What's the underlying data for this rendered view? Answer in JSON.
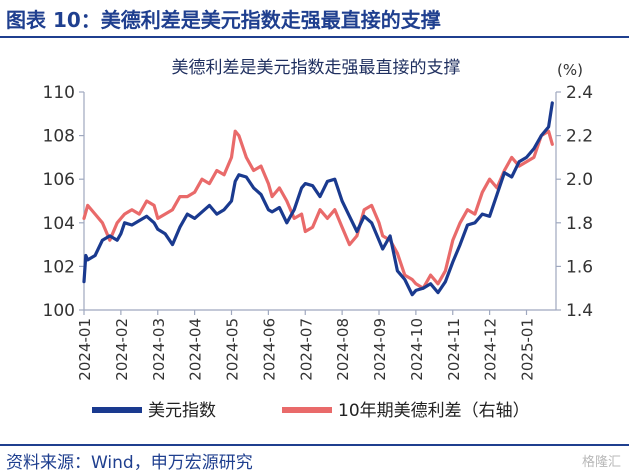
{
  "figure_title": "图表 10：美德利差是美元指数走强最直接的支撑",
  "source": "资料来源：Wind，申万宏源研究",
  "watermark": "格隆汇",
  "colors": {
    "usd": "#1a3a8f",
    "spread": "#e96a6a",
    "accent": "#1f3f8f"
  },
  "chart_data": {
    "type": "line",
    "title": "美德利差是美元指数走强最直接的支撑",
    "right_unit": "(%)",
    "left_axis": {
      "ylim": [
        100,
        110
      ],
      "ticks": [
        "100",
        "102",
        "104",
        "106",
        "108",
        "110"
      ]
    },
    "right_axis": {
      "ylim": [
        1.4,
        2.4
      ],
      "ticks": [
        "1.4",
        "1.6",
        "1.8",
        "2.0",
        "2.2",
        "2.4"
      ]
    },
    "x_range": [
      0,
      12.8
    ],
    "x_ticks": [
      "2024-01",
      "2024-02",
      "2024-03",
      "2024-04",
      "2024-05",
      "2024-06",
      "2024-07",
      "2024-08",
      "2024-09",
      "2024-10",
      "2024-11",
      "2024-12",
      "2025-01"
    ],
    "series": [
      {
        "name": "美元指数",
        "axis": "left",
        "x": [
          0.0,
          0.05,
          0.1,
          0.3,
          0.5,
          0.7,
          0.9,
          1.0,
          1.1,
          1.3,
          1.5,
          1.7,
          1.9,
          2.0,
          2.2,
          2.4,
          2.6,
          2.8,
          3.0,
          3.2,
          3.4,
          3.6,
          3.8,
          4.0,
          4.1,
          4.2,
          4.4,
          4.6,
          4.8,
          5.0,
          5.1,
          5.3,
          5.5,
          5.7,
          5.9,
          6.0,
          6.2,
          6.4,
          6.6,
          6.8,
          7.0,
          7.2,
          7.4,
          7.6,
          7.8,
          8.0,
          8.1,
          8.3,
          8.5,
          8.7,
          8.9,
          9.0,
          9.2,
          9.4,
          9.6,
          9.8,
          10.0,
          10.2,
          10.4,
          10.6,
          10.8,
          11.0,
          11.2,
          11.4,
          11.6,
          11.8,
          12.0,
          12.2,
          12.4,
          12.6,
          12.7
        ],
        "values": [
          101.3,
          102.5,
          102.3,
          102.5,
          103.2,
          103.4,
          103.2,
          103.5,
          104.0,
          103.9,
          104.1,
          104.3,
          104.0,
          103.7,
          103.5,
          103.0,
          103.8,
          104.4,
          104.2,
          104.5,
          104.8,
          104.4,
          104.6,
          105.0,
          105.9,
          106.2,
          106.1,
          105.6,
          105.3,
          104.6,
          104.5,
          104.7,
          104.0,
          104.6,
          105.6,
          105.8,
          105.7,
          105.2,
          105.9,
          106.0,
          105.0,
          104.3,
          103.6,
          104.3,
          104.0,
          103.2,
          102.8,
          103.4,
          101.8,
          101.4,
          100.7,
          100.9,
          101.0,
          101.2,
          100.8,
          101.3,
          102.2,
          103.0,
          103.9,
          104.0,
          104.4,
          104.3,
          105.3,
          106.3,
          106.1,
          106.8,
          107.0,
          107.4,
          108.0,
          108.4,
          109.5
        ]
      },
      {
        "name": "10年期美德利差（右轴）",
        "axis": "right",
        "x": [
          0.0,
          0.1,
          0.3,
          0.5,
          0.7,
          0.9,
          1.0,
          1.1,
          1.3,
          1.5,
          1.7,
          1.9,
          2.0,
          2.2,
          2.4,
          2.6,
          2.8,
          3.0,
          3.2,
          3.4,
          3.6,
          3.8,
          4.0,
          4.1,
          4.2,
          4.4,
          4.6,
          4.8,
          5.0,
          5.1,
          5.3,
          5.5,
          5.7,
          5.9,
          6.0,
          6.2,
          6.4,
          6.6,
          6.8,
          7.0,
          7.2,
          7.4,
          7.6,
          7.8,
          8.0,
          8.1,
          8.3,
          8.5,
          8.7,
          8.9,
          9.0,
          9.2,
          9.4,
          9.6,
          9.8,
          10.0,
          10.2,
          10.4,
          10.6,
          10.8,
          11.0,
          11.2,
          11.4,
          11.6,
          11.8,
          12.0,
          12.2,
          12.4,
          12.6,
          12.7
        ],
        "values": [
          1.82,
          1.88,
          1.84,
          1.8,
          1.72,
          1.8,
          1.82,
          1.84,
          1.86,
          1.84,
          1.9,
          1.88,
          1.82,
          1.84,
          1.86,
          1.92,
          1.92,
          1.94,
          2.0,
          1.98,
          2.04,
          2.02,
          2.1,
          2.22,
          2.2,
          2.1,
          2.04,
          2.06,
          1.98,
          1.92,
          1.96,
          1.9,
          1.82,
          1.84,
          1.76,
          1.78,
          1.86,
          1.82,
          1.86,
          1.78,
          1.7,
          1.74,
          1.86,
          1.88,
          1.8,
          1.74,
          1.72,
          1.66,
          1.56,
          1.54,
          1.52,
          1.5,
          1.56,
          1.52,
          1.58,
          1.72,
          1.8,
          1.86,
          1.84,
          1.94,
          2.0,
          1.96,
          2.04,
          2.1,
          2.06,
          2.08,
          2.1,
          2.2,
          2.22,
          2.16
        ]
      }
    ]
  }
}
